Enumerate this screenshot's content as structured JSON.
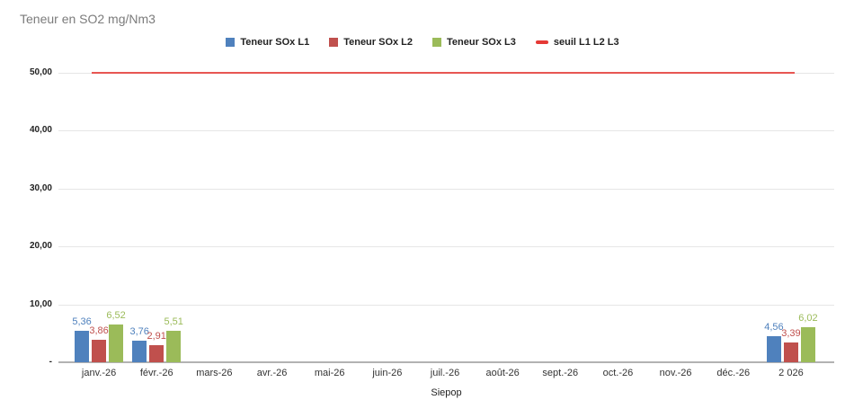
{
  "title": "Teneur en SO2 mg/Nm3",
  "chart_data": {
    "type": "bar",
    "title": "Teneur en SO2 mg/Nm3",
    "xlabel": "Siepop",
    "ylabel": "",
    "ylim": [
      0,
      53.3
    ],
    "grid": true,
    "legend_position": "top",
    "categories": [
      "janv.-26",
      "févr.-26",
      "mars-26",
      "avr.-26",
      "mai-26",
      "juin-26",
      "juil.-26",
      "août-26",
      "sept.-26",
      "oct.-26",
      "nov.-26",
      "déc.-26",
      "2 026"
    ],
    "y_ticks": [
      {
        "label": "50,00",
        "value": 50
      },
      {
        "label": "40,00",
        "value": 40
      },
      {
        "label": "30,00",
        "value": 30
      },
      {
        "label": "20,00",
        "value": 20
      },
      {
        "label": "10,00",
        "value": 10
      },
      {
        "label": "-",
        "value": 0
      }
    ],
    "series": [
      {
        "name": "Teneur SOx L1",
        "color": "#4f81bd",
        "values": [
          5.36,
          3.76,
          null,
          null,
          null,
          null,
          null,
          null,
          null,
          null,
          null,
          null,
          4.56
        ],
        "labels": [
          "5,36",
          "3,76",
          "",
          "",
          "",
          "",
          "",
          "",
          "",
          "",
          "",
          "",
          "4,56"
        ]
      },
      {
        "name": "Teneur SOx L2",
        "color": "#c0504d",
        "values": [
          3.86,
          2.91,
          null,
          null,
          null,
          null,
          null,
          null,
          null,
          null,
          null,
          null,
          3.39
        ],
        "labels": [
          "3,86",
          "2,91",
          "",
          "",
          "",
          "",
          "",
          "",
          "",
          "",
          "",
          "",
          "3,39"
        ]
      },
      {
        "name": "Teneur SOx L3",
        "color": "#9bbb59",
        "values": [
          6.52,
          5.51,
          null,
          null,
          null,
          null,
          null,
          null,
          null,
          null,
          null,
          null,
          6.02
        ],
        "labels": [
          "6,52",
          "5,51",
          "",
          "",
          "",
          "",
          "",
          "",
          "",
          "",
          "",
          "",
          "6,02"
        ]
      }
    ],
    "threshold": {
      "name": "seuil L1 L2 L3",
      "color": "#e53935",
      "value": 50
    }
  }
}
